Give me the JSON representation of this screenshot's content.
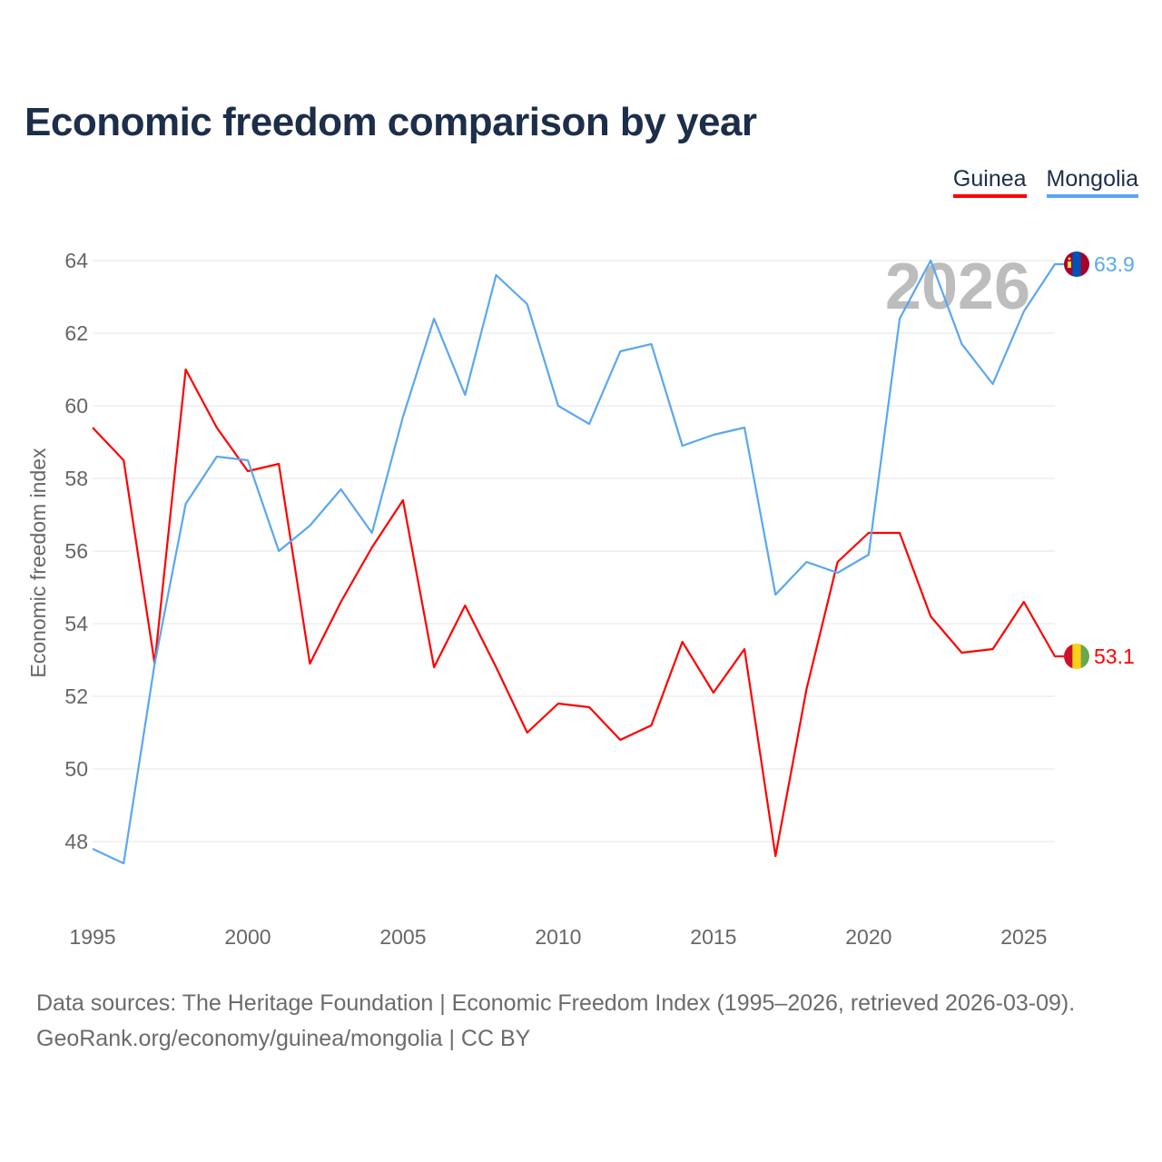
{
  "title": "Economic freedom comparison by year",
  "watermark_year": "2026",
  "footer": {
    "line1": "Data sources: The Heritage Foundation | Economic Freedom Index (1995–2026, retrieved 2026-03-09).",
    "line2": "GeoRank.org/economy/guinea/mongolia | CC BY"
  },
  "chart_data": {
    "type": "line",
    "title": "Economic freedom comparison by year",
    "xlabel": "",
    "ylabel": "Economic freedom index",
    "xlim": [
      1995,
      2026
    ],
    "ylim": [
      46,
      64.5
    ],
    "x_ticks": [
      "1995",
      "2000",
      "2005",
      "2010",
      "2015",
      "2020",
      "2025"
    ],
    "y_ticks": [
      "48",
      "50",
      "52",
      "54",
      "56",
      "58",
      "60",
      "62",
      "64"
    ],
    "grid": true,
    "legend_placement": "top-right",
    "x": [
      1995,
      1996,
      1997,
      1998,
      1999,
      2000,
      2001,
      2002,
      2003,
      2004,
      2005,
      2006,
      2007,
      2008,
      2009,
      2010,
      2011,
      2012,
      2013,
      2014,
      2015,
      2016,
      2017,
      2018,
      2019,
      2020,
      2021,
      2022,
      2023,
      2024,
      2025,
      2026
    ],
    "series": [
      {
        "name": "Guinea",
        "color": "#ff0000",
        "end_label": "53.1",
        "flag": "guinea-flag",
        "values": [
          59.4,
          58.5,
          52.9,
          61.0,
          59.4,
          58.2,
          58.4,
          52.9,
          54.6,
          56.1,
          57.4,
          52.8,
          54.5,
          52.8,
          51.0,
          51.8,
          51.7,
          50.8,
          51.2,
          53.5,
          52.1,
          53.3,
          47.6,
          52.2,
          55.7,
          56.5,
          56.5,
          54.2,
          53.2,
          53.3,
          54.6,
          53.1
        ]
      },
      {
        "name": "Mongolia",
        "color": "#5aa7ef",
        "end_label": "63.9",
        "flag": "mongolia-flag",
        "values": [
          47.8,
          47.4,
          52.9,
          57.3,
          58.6,
          58.5,
          56.0,
          56.7,
          57.7,
          56.5,
          59.7,
          62.4,
          60.3,
          63.6,
          62.8,
          60.0,
          59.5,
          61.5,
          61.7,
          58.9,
          59.2,
          59.4,
          54.8,
          55.7,
          55.4,
          55.9,
          62.4,
          64.0,
          61.7,
          60.6,
          62.6,
          63.9
        ]
      }
    ]
  }
}
